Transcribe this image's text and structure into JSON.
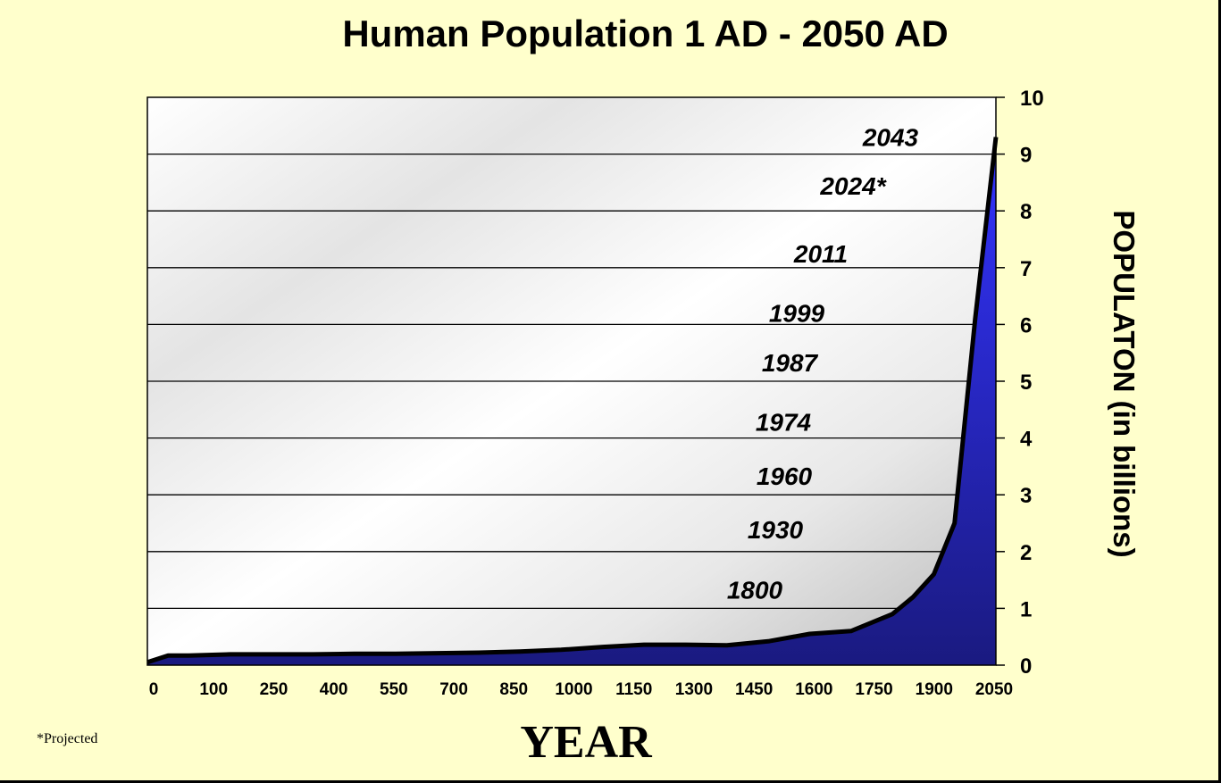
{
  "chart_data": {
    "type": "area",
    "title": "Human Population 1 AD - 2050 AD",
    "xlabel": "YEAR",
    "ylabel": "POPULATON (in billions)",
    "footnote": "*Projected",
    "xlim": [
      0,
      2050
    ],
    "ylim": [
      0,
      10
    ],
    "x_ticks": [
      "0",
      "100",
      "250",
      "400",
      "550",
      "700",
      "850",
      "1000",
      "1150",
      "1300",
      "1450",
      "1600",
      "1750",
      "1900",
      "2050"
    ],
    "y_ticks": [
      "0",
      "1",
      "2",
      "3",
      "4",
      "5",
      "6",
      "7",
      "8",
      "9",
      "10"
    ],
    "grid": true,
    "series": [
      {
        "x": [
          0,
          50,
          100,
          200,
          300,
          400,
          500,
          600,
          700,
          800,
          900,
          1000,
          1100,
          1200,
          1300,
          1400,
          1500,
          1600,
          1700,
          1800,
          1850,
          1900,
          1950,
          2000,
          2050
        ],
        "y": [
          0.05,
          0.17,
          0.17,
          0.19,
          0.19,
          0.19,
          0.2,
          0.2,
          0.21,
          0.22,
          0.24,
          0.27,
          0.32,
          0.36,
          0.36,
          0.35,
          0.42,
          0.55,
          0.6,
          0.9,
          1.2,
          1.6,
          2.5,
          6.1,
          9.3
        ]
      }
    ],
    "milestones": [
      {
        "label": "1800",
        "billion": 1
      },
      {
        "label": "1930",
        "billion": 2
      },
      {
        "label": "1960",
        "billion": 3
      },
      {
        "label": "1974",
        "billion": 4
      },
      {
        "label": "1987",
        "billion": 5
      },
      {
        "label": "1999",
        "billion": 6
      },
      {
        "label": "2011",
        "billion": 7
      },
      {
        "label": "2024*",
        "billion": 8
      },
      {
        "label": "2043",
        "billion": 9
      }
    ],
    "colors": {
      "area_top": "#3333FF",
      "area_bottom": "#1A1A80",
      "line": "#000000",
      "plot_light": "#FFFFFF",
      "plot_dark": "#C0C0C0",
      "background": "#FFFFCC"
    }
  }
}
